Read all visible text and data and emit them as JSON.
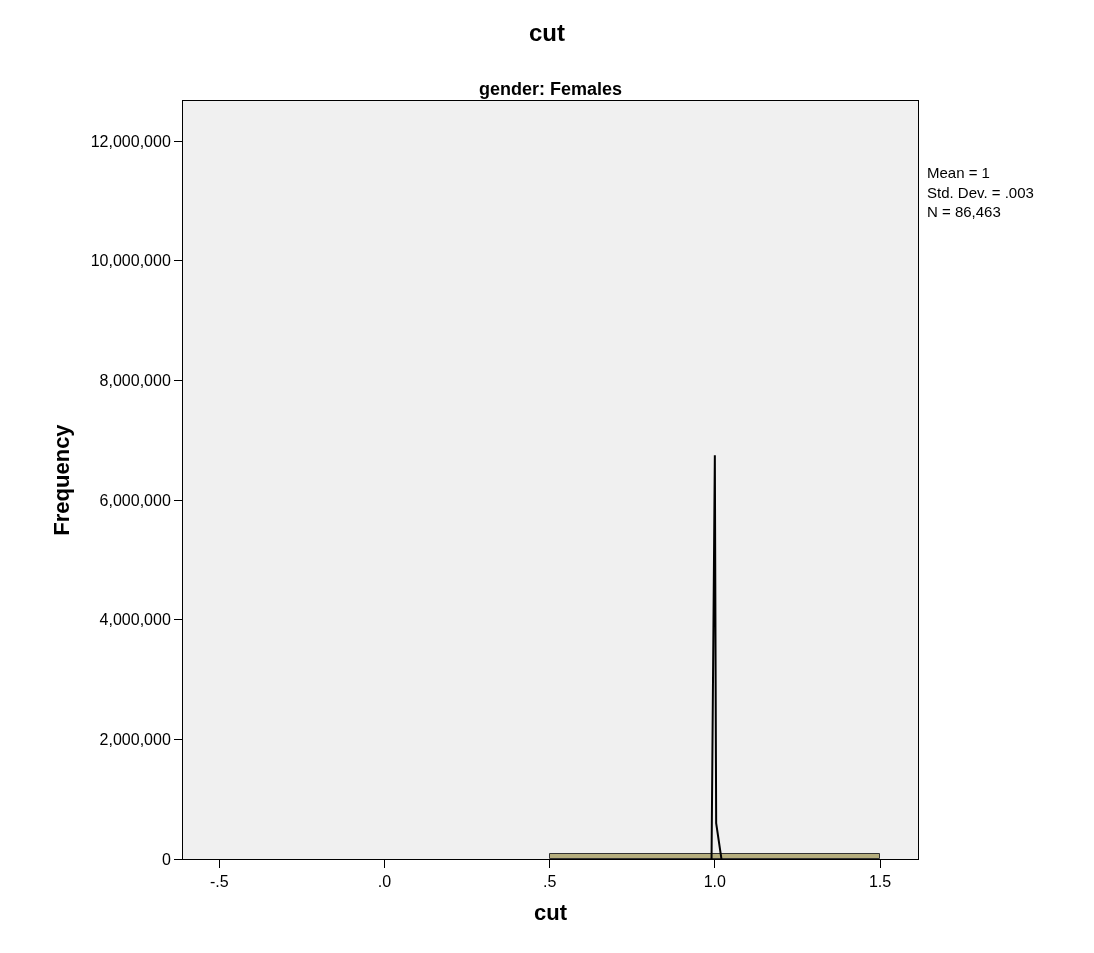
{
  "chart_data": {
    "type": "histogram",
    "title": "cut",
    "subtitle": "gender: Females",
    "xlabel": "cut",
    "ylabel": "Frequency",
    "bins": [
      0.5,
      1.5
    ],
    "values": [
      86463
    ],
    "color": "#b5ae7e",
    "series": [
      {
        "type": "line",
        "color": "#000000",
        "x": [
          0.99,
          1.0,
          1.004,
          1.02
        ],
        "values": [
          0,
          6750000,
          600000,
          0
        ]
      }
    ],
    "annotations": [
      "Mean = 1\nStd. Dev. = .003\nN = 86,463"
    ],
    "xlim": [
      -0.61,
      1.615
    ],
    "ylim": [
      0,
      12670000
    ],
    "xticks": [
      {
        "value": -0.5,
        "label": "-.5"
      },
      {
        "value": 0,
        "label": ".0"
      },
      {
        "value": 0.5,
        "label": ".5"
      },
      {
        "value": 1.0,
        "label": "1.0"
      },
      {
        "value": 1.5,
        "label": "1.5"
      }
    ],
    "yticks": [
      {
        "value": 0,
        "label": "0"
      },
      {
        "value": 2000000,
        "label": "2,000,000"
      },
      {
        "value": 4000000,
        "label": "4,000,000"
      },
      {
        "value": 6000000,
        "label": "6,000,000"
      },
      {
        "value": 8000000,
        "label": "8,000,000"
      },
      {
        "value": 10000000,
        "label": "10,000,000"
      },
      {
        "value": 12000000,
        "label": "12,000,000"
      }
    ],
    "grid": false,
    "marker": "none"
  }
}
